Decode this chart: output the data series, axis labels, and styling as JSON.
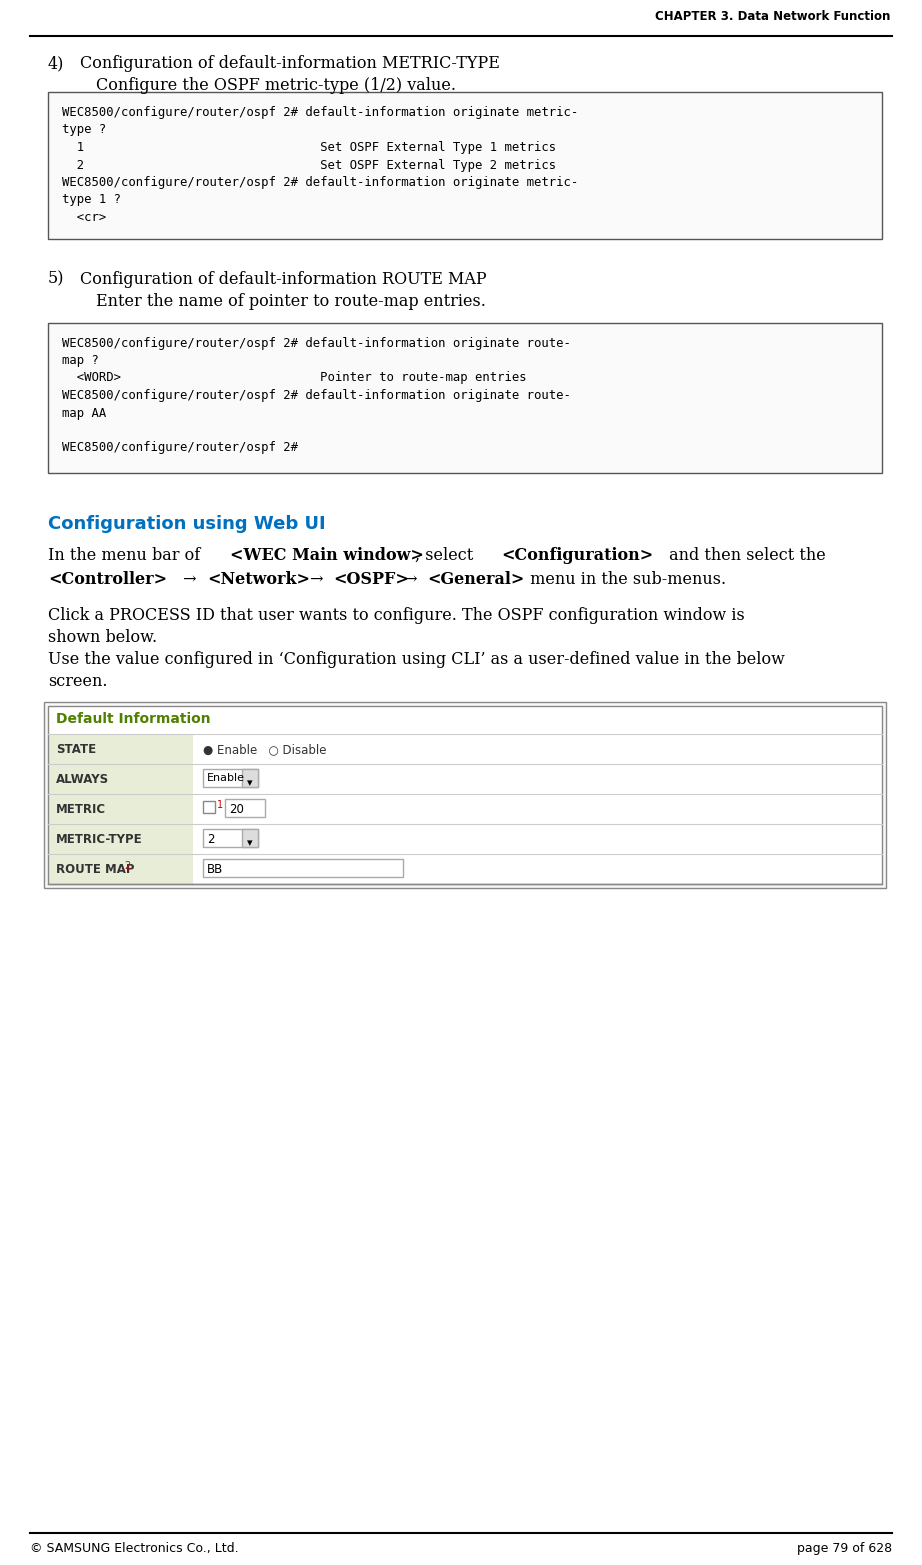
{
  "header_text": "CHAPTER 3. Data Network Function",
  "footer_left": "© SAMSUNG Electronics Co., Ltd.",
  "footer_right": "page 79 of 628",
  "section4_num": "4)",
  "section4_title": "Configuration of default-information METRIC-TYPE",
  "section4_sub": "Configure the OSPF metric-type (1/2) value.",
  "box1_text_lines": [
    "WEC8500/configure/router/ospf 2# default-information originate metric-",
    "type ?",
    "  1                                Set OSPF External Type 1 metrics",
    "  2                                Set OSPF External Type 2 metrics",
    "WEC8500/configure/router/ospf 2# default-information originate metric-",
    "type 1 ?",
    "  <cr>"
  ],
  "section5_num": "5)",
  "section5_title": "Configuration of default-information ROUTE MAP",
  "section5_sub": "Enter the name of pointer to route-map entries.",
  "box2_text_lines": [
    "WEC8500/configure/router/ospf 2# default-information originate route-",
    "map ?",
    "  <WORD>                           Pointer to route-map entries",
    "WEC8500/configure/router/ospf 2# default-information originate route-",
    "map AA",
    "",
    "WEC8500/configure/router/ospf 2#"
  ],
  "webui_heading": "Configuration using Web UI",
  "table_title": "Default Information",
  "table_rows": [
    [
      "STATE",
      "● Enable   ○ Disable"
    ],
    [
      "ALWAYS",
      "Enable  ▾"
    ],
    [
      "METRIC",
      "□ 1  20"
    ],
    [
      "METRIC-TYPE",
      "2  ▾"
    ],
    [
      "ROUTE MAP 2",
      "BB"
    ]
  ],
  "body_font": "DejaVu Serif",
  "bg_color": "#FFFFFF",
  "webui_color": "#0070C0",
  "table_title_color": "#4F8000",
  "label_col_bg": "#E8EDD8",
  "table_border_color": "#AAAAAA",
  "table_outer_border": "#808080"
}
